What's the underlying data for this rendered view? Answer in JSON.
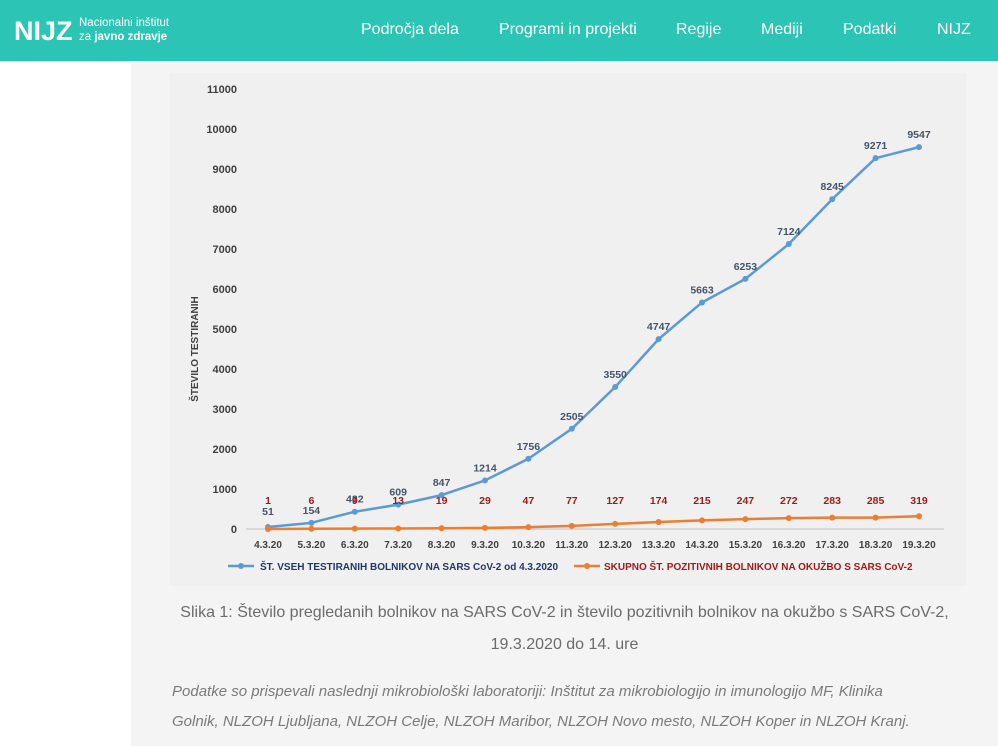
{
  "header": {
    "logo_mark": "NIJZ",
    "logo_line1": "Nacionalni inštitut",
    "logo_line2_pre": "za ",
    "logo_line2_bold": "javno zdravje",
    "nav": [
      "Področja dela",
      "Programi in projekti",
      "Regije",
      "Mediji",
      "Podatki",
      "NIJZ"
    ]
  },
  "chart_data": {
    "type": "line",
    "categories": [
      "4.3.20",
      "5.3.20",
      "6.3.20",
      "7.3.20",
      "8.3.20",
      "9.3.20",
      "10.3.20",
      "11.3.20",
      "12.3.20",
      "13.3.20",
      "14.3.20",
      "15.3.20",
      "16.3.20",
      "17.3.20",
      "18.3.20",
      "19.3.20"
    ],
    "ylabel": "ŠTEVILO TESTIRANIH",
    "ylim": [
      0,
      11000
    ],
    "yticks": [
      0,
      1000,
      2000,
      3000,
      4000,
      5000,
      6000,
      7000,
      8000,
      9000,
      10000,
      11000
    ],
    "grid": false,
    "legend_position": "bottom",
    "series": [
      {
        "name": "ŠT. VSEH TESTIRANIH BOLNIKOV NA SARS CoV-2 od 4.3.2020",
        "color": "#5b9bd5",
        "label_color": "#44546a",
        "values": [
          51,
          154,
          432,
          609,
          847,
          1214,
          1756,
          2505,
          3550,
          4747,
          5663,
          6253,
          7124,
          8245,
          9271,
          9547
        ]
      },
      {
        "name": "SKUPNO ŠT. POZITIVNIH BOLNIKOV NA OKUŽBO S SARS CoV-2",
        "color": "#ed7d31",
        "label_color": "#9c1a1a",
        "values": [
          1,
          6,
          9,
          13,
          19,
          29,
          47,
          77,
          127,
          174,
          215,
          247,
          272,
          283,
          285,
          319
        ]
      }
    ]
  },
  "caption": {
    "line1": "Slika 1: Število pregledanih bolnikov na SARS CoV-2 in število pozitivnih bolnikov na okužbo s SARS CoV-2,",
    "line2": "19.3.2020 do 14. ure"
  },
  "note": {
    "line1": "Podatke so prispevali naslednji mikrobiološki laboratoriji: Inštitut za mikrobiologijo in imunologijo MF, Klinika",
    "line2": "Golnik, NLZOH Ljubljana, NLZOH Celje, NLZOH Maribor, NLZOH Novo mesto, NLZOH Koper in NLZOH Kranj."
  }
}
